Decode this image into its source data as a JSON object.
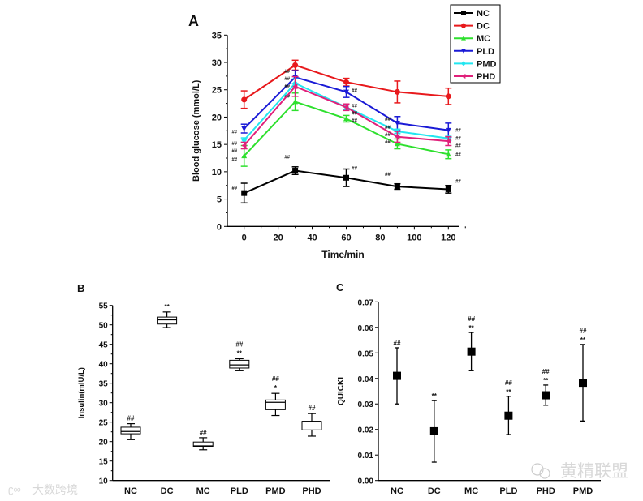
{
  "chart_data": [
    {
      "panel": "A",
      "type": "line",
      "xlabel": "Time/min",
      "ylabel": "Blood glucose (mmol/L)",
      "xlim": [
        -9,
        125
      ],
      "ylim": [
        0,
        35
      ],
      "xticks": [
        0,
        20,
        40,
        60,
        80,
        100,
        120
      ],
      "yticks": [
        0,
        5,
        10,
        15,
        20,
        25,
        30,
        35
      ],
      "legend_placement": "top-right",
      "x": [
        0,
        30,
        60,
        90,
        120
      ],
      "series": [
        {
          "name": "NC",
          "color": "#000000",
          "marker": "square",
          "values": [
            6.1,
            10.2,
            8.9,
            7.3,
            6.8
          ],
          "errors": [
            1.8,
            0.7,
            1.6,
            0.5,
            0.7
          ],
          "annotations": [
            "##",
            "##",
            "##",
            "##",
            "##"
          ]
        },
        {
          "name": "DC",
          "color": "#e8191c",
          "marker": "circle",
          "values": [
            23.2,
            29.5,
            26.4,
            24.6,
            23.8
          ],
          "errors": [
            1.6,
            0.9,
            0.7,
            2.0,
            1.5
          ],
          "annotations": []
        },
        {
          "name": "MC",
          "color": "#2ee02e",
          "marker": "triangle-up",
          "values": [
            12.9,
            22.8,
            19.7,
            15.1,
            13.2
          ],
          "errors": [
            1.9,
            1.6,
            0.6,
            0.9,
            0.8
          ],
          "annotations": [
            "##",
            "##",
            "##",
            "##",
            "##"
          ]
        },
        {
          "name": "PLD",
          "color": "#1a1ad6",
          "marker": "triangle-down",
          "values": [
            17.9,
            27.3,
            24.6,
            18.9,
            17.6
          ],
          "errors": [
            0.8,
            1.2,
            1.0,
            1.2,
            1.3
          ],
          "annotations": [
            "##",
            "##",
            "##",
            "##",
            "##"
          ]
        },
        {
          "name": "PMD",
          "color": "#22e6f0",
          "marker": "diamond",
          "values": [
            15.8,
            26.2,
            21.8,
            17.4,
            16.1
          ],
          "errors": [
            0.4,
            0.8,
            0.5,
            0.4,
            0.4
          ],
          "annotations": [
            "##",
            "##",
            "##",
            "##",
            "##"
          ]
        },
        {
          "name": "PHD",
          "color": "#e0207a",
          "marker": "triangle-left",
          "values": [
            14.8,
            25.6,
            21.8,
            16.4,
            15.6
          ],
          "errors": [
            0.6,
            1.8,
            0.6,
            1.0,
            0.8
          ],
          "annotations": [
            "##",
            "##",
            "##",
            "##",
            "##"
          ]
        }
      ]
    },
    {
      "panel": "B",
      "type": "box",
      "ylabel": "Insulin(mIU/L)",
      "ylim": [
        10,
        55
      ],
      "yticks": [
        10,
        15,
        20,
        25,
        30,
        35,
        40,
        45,
        50,
        55
      ],
      "categories": [
        "NC",
        "DC",
        "MC",
        "PLD",
        "PMD",
        "PHD"
      ],
      "boxes": [
        {
          "min": 20.5,
          "q1": 22.0,
          "median": 22.6,
          "q3": 23.7,
          "max": 24.6,
          "annotations": [
            "##"
          ]
        },
        {
          "min": 49.3,
          "q1": 50.2,
          "median": 51.3,
          "q3": 52.0,
          "max": 53.3,
          "annotations": [
            "**"
          ]
        },
        {
          "min": 17.9,
          "q1": 18.7,
          "median": 18.9,
          "q3": 19.9,
          "max": 21.0,
          "annotations": [
            "##"
          ]
        },
        {
          "min": 38.2,
          "q1": 38.9,
          "median": 39.7,
          "q3": 40.9,
          "max": 41.3,
          "annotations": [
            "##",
            "**"
          ]
        },
        {
          "min": 26.7,
          "q1": 28.2,
          "median": 30.1,
          "q3": 30.7,
          "max": 32.4,
          "annotations": [
            "##",
            "*"
          ]
        },
        {
          "min": 21.4,
          "q1": 23.0,
          "median": 25.2,
          "q3": 25.2,
          "max": 27.2,
          "annotations": [
            "##"
          ]
        }
      ]
    },
    {
      "panel": "C",
      "type": "scatter",
      "ylabel": "QUICKI",
      "ylim": [
        0,
        0.07
      ],
      "yticks": [
        "0.00",
        "0.01",
        "0.02",
        "0.03",
        "0.04",
        "0.05",
        "0.06",
        "0.07"
      ],
      "categories": [
        "NC",
        "DC",
        "MC",
        "PLD",
        "PHD",
        "PMD"
      ],
      "values": [
        0.041,
        0.0193,
        0.0505,
        0.0254,
        0.0334,
        0.0383
      ],
      "lower": [
        0.03,
        0.0072,
        0.043,
        0.018,
        0.0295,
        0.0233
      ],
      "upper": [
        0.052,
        0.0313,
        0.058,
        0.033,
        0.0374,
        0.0533
      ],
      "annotations": [
        [
          "##"
        ],
        [
          "**"
        ],
        [
          "##",
          "**"
        ],
        [
          "##",
          "**"
        ],
        [
          "##",
          "**"
        ],
        [
          "##",
          "**"
        ]
      ]
    }
  ],
  "watermarks": {
    "left": "大数跨境",
    "right": "黄精联盟"
  }
}
